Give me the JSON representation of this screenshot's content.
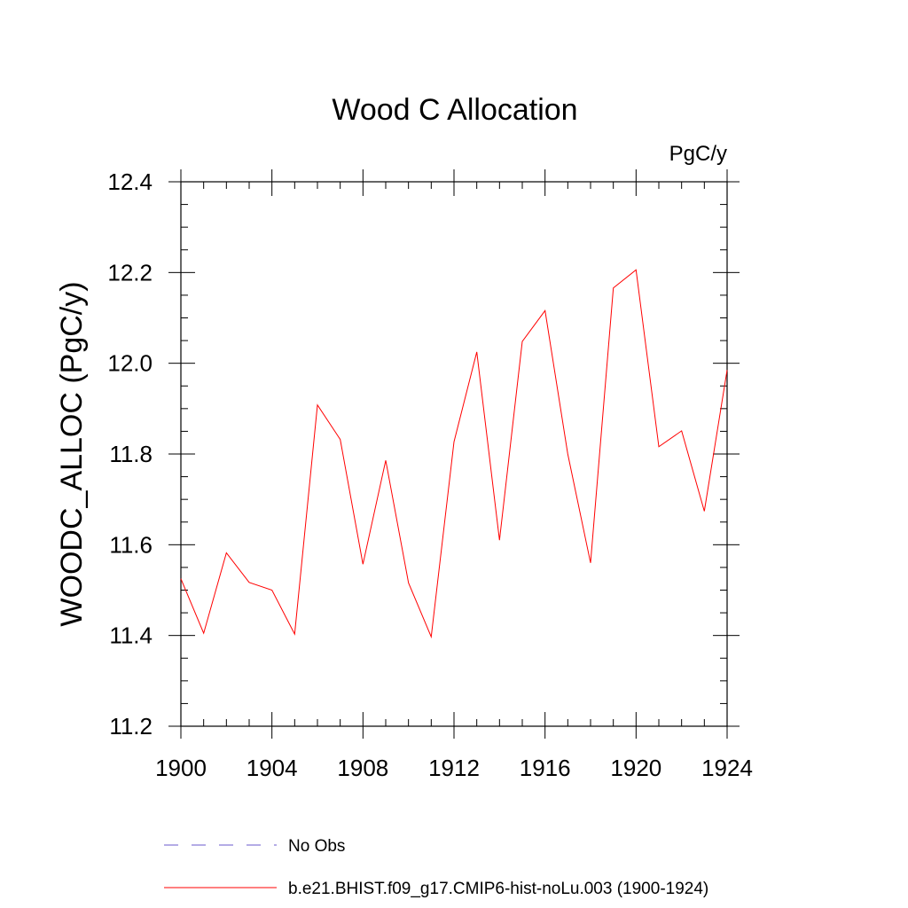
{
  "chart_data": {
    "type": "line",
    "title": "Wood C Allocation",
    "units_label": "PgC/y",
    "ylabel": "WOODC_ALLOC  (PgC/y)",
    "xlabel": "",
    "xlim": [
      1900,
      1924
    ],
    "ylim": [
      11.2,
      12.4
    ],
    "x_ticks": [
      "1900",
      "1904",
      "1908",
      "1912",
      "1916",
      "1920",
      "1924"
    ],
    "y_ticks": [
      "11.2",
      "11.4",
      "11.6",
      "11.8",
      "12.0",
      "12.2",
      "12.4"
    ],
    "grid": false,
    "legend_position": "bottom",
    "colors": {
      "model": "#ff0000",
      "obs": "#6a5acd"
    },
    "series": [
      {
        "name": "b.e21.BHIST.f09_g17.CMIP6-hist-noLu.003 (1900-1924)",
        "x": [
          1900,
          1901,
          1902,
          1903,
          1904,
          1905,
          1906,
          1907,
          1908,
          1909,
          1910,
          1911,
          1912,
          1913,
          1914,
          1915,
          1916,
          1917,
          1918,
          1919,
          1920,
          1921,
          1922,
          1923,
          1924
        ],
        "values": [
          11.525,
          11.405,
          11.582,
          11.517,
          11.5,
          11.403,
          11.908,
          11.832,
          11.557,
          11.786,
          11.516,
          11.397,
          11.827,
          12.025,
          11.61,
          12.048,
          12.116,
          11.8,
          11.56,
          12.166,
          12.206,
          11.816,
          11.851,
          11.674,
          11.985
        ]
      },
      {
        "name": "No Obs",
        "x": [],
        "values": []
      }
    ],
    "legend": [
      {
        "label": "No Obs",
        "style": "dashed"
      },
      {
        "label": "b.e21.BHIST.f09_g17.CMIP6-hist-noLu.003 (1900-1924)",
        "style": "solid"
      }
    ]
  }
}
